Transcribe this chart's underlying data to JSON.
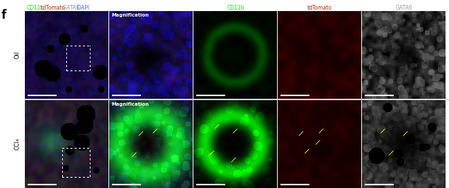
{
  "panel_label": "f",
  "header_labels_merged": [
    "CD11b",
    " tdTomato",
    " GATA6",
    " DAPI"
  ],
  "header_colors_merged": [
    "#22dd22",
    "#cc2200",
    "#999999",
    "#4466ff"
  ],
  "header_labels_single": [
    "CD11b",
    "tdTomato",
    "GATA6"
  ],
  "header_colors_single": [
    "#22dd22",
    "#cc2200",
    "#999999"
  ],
  "row_labels": [
    "Oil",
    "CCl₄"
  ],
  "magnification_label": "Magnification",
  "figure_bg": "#ffffff",
  "panel_label_color": "#000000",
  "arrow_color": "#ffff00",
  "sep_color": "#888888"
}
